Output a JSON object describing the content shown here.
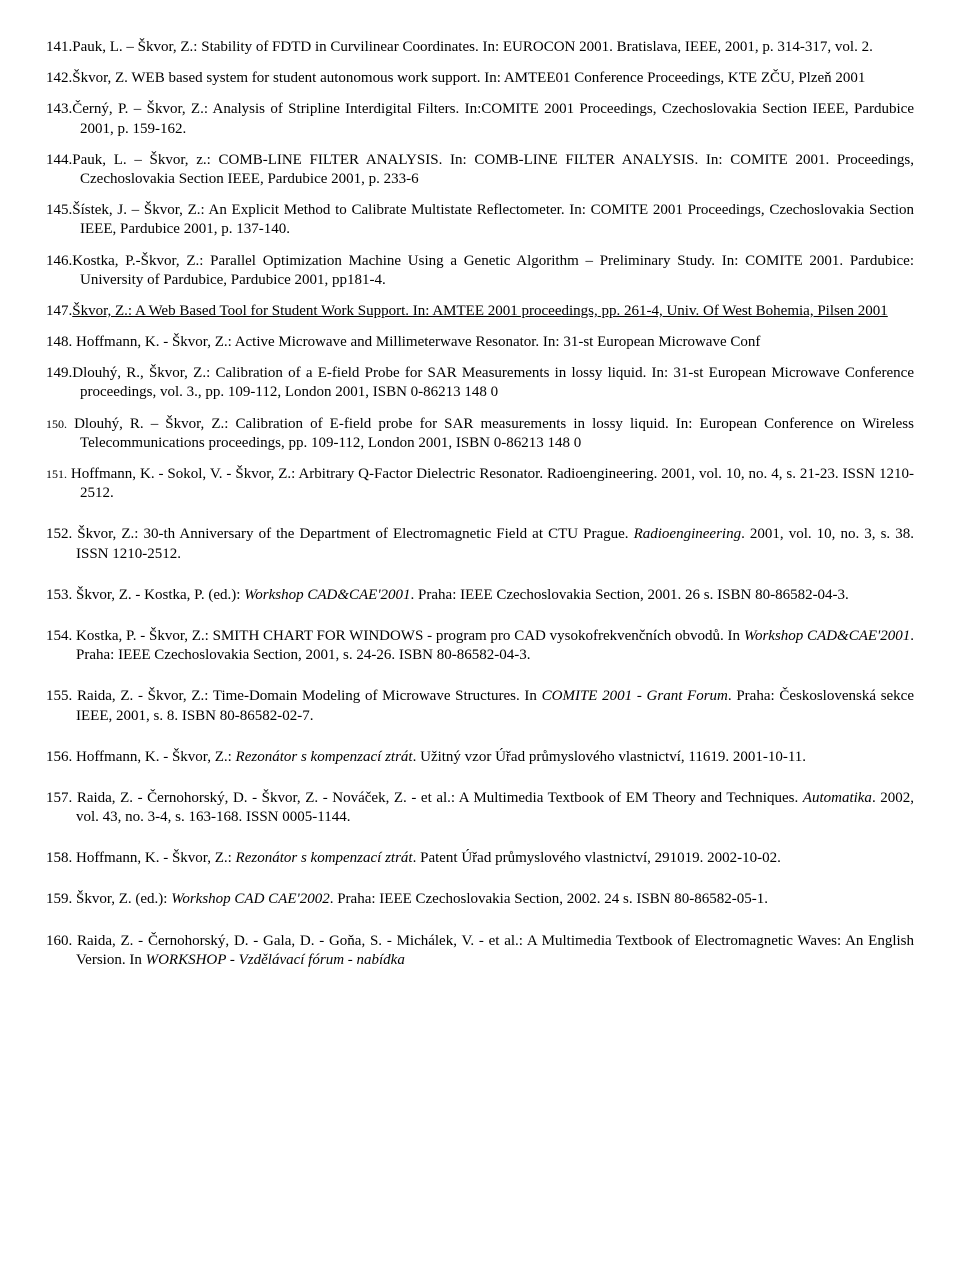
{
  "entries": [
    {
      "n": "141.",
      "cls": "hang",
      "html": "Pauk, L. – Škvor, Z.: Stability of FDTD in Curvilinear Coordinates. In: EUROCON 2001. Bratislava, IEEE, 2001, p. 314-317, vol. 2."
    },
    {
      "n": "142.",
      "cls": "hang",
      "html": "Škvor, Z. WEB based system for student autonomous work support. In: AMTEE01 Conference Proceedings, KTE ZČU, Plzeň 2001"
    },
    {
      "n": "143.",
      "cls": "hang",
      "html": "Černý, P. – Škvor, Z.: Analysis of Stripline Interdigital Filters. In:COMITE 2001 Proceedings, Czechoslovakia Section IEEE, Pardubice 2001, p. 159-162."
    },
    {
      "n": "144.",
      "cls": "hang",
      "html": "Pauk, L. – Škvor, z.: COMB-LINE FILTER ANALYSIS. In: COMB-LINE FILTER ANALYSIS. In: COMITE 2001. Proceedings, Czechoslovakia Section IEEE, Pardubice 2001, p.  233-6"
    },
    {
      "n": "145.",
      "cls": "hang",
      "html": "Šístek, J. – Škvor, Z.: An Explicit Method to Calibrate Multistate Reflectometer. In: COMITE 2001 Proceedings, Czechoslovakia Section IEEE, Pardubice 2001, p. 137-140."
    },
    {
      "n": "146.",
      "cls": "hang",
      "html": "Kostka, P.-Škvor, Z.: Parallel Optimization Machine Using a Genetic Algorithm – Preliminary Study. In: COMITE 2001. Pardubice: University of Pardubice, Pardubice 2001, pp181-4."
    },
    {
      "n": "147.",
      "cls": "hang",
      "html": "<span class=\"underline\">Škvor, Z.: A Web Based Tool for Student Work Support. In: AMTEE 2001 proceedings, pp. 261-4, Univ. Of West Bohemia, Pilsen 2001</span>"
    },
    {
      "n": "148.",
      "cls": "hang-sm",
      "html": " Hoffmann, K. - Škvor, Z.: Active Microwave and Millimeterwave Resonator. In: 31-st European Microwave Conf"
    },
    {
      "n": "149.",
      "cls": "hang",
      "html": "Dlouhý, R., Škvor, Z.: Calibration of a E-field Probe for SAR Measurements in lossy liquid. In: 31-st European Microwave Conference proceedings, vol. 3., pp. 109-112, London 2001, ISBN 0-86213 148 0"
    },
    {
      "n": "<span class=\"sm-num\">150.</span>",
      "cls": "hang",
      "html": " Dlouhý, R. – Škvor, Z.: Calibration of E-field probe for SAR measurements in lossy liquid. In: European Conference on Wireless Telecommunications proceedings, pp. 109-112, London 2001, ISBN 0-86213 148 0"
    },
    {
      "n": "<span class=\"sm-num\">151.</span>",
      "cls": "hang extra-gap",
      "html": " Hoffmann, K. - Sokol, V. - Škvor, Z.: Arbitrary Q-Factor Dielectric Resonator. Radioengineering. 2001, vol. 10, no. 4, s. 21-23. ISSN 1210-2512."
    },
    {
      "n": "152.",
      "cls": "hang-sm extra-gap",
      "html": " Škvor, Z.: 30-th Anniversary of the Department of Electromagnetic Field at CTU Prague. <span class=\"italic\">Radioengineering</span>. 2001, vol. 10, no. 3, s. 38. ISSN 1210-2512."
    },
    {
      "n": "153.",
      "cls": "hang-sm extra-gap",
      "html": " Škvor, Z. - Kostka, P. (ed.): <span class=\"italic\">Workshop CAD&CAE'2001</span>. Praha: IEEE Czechoslovakia Section, 2001. 26 s. ISBN 80-86582-04-3."
    },
    {
      "n": "154.",
      "cls": "hang-sm extra-gap",
      "html": " Kostka, P. - Škvor, Z.: SMITH CHART FOR WINDOWS - program pro CAD vysokofrekvenčních obvodů. In <span class=\"italic\">Workshop CAD&CAE'2001</span>. Praha: IEEE Czechoslovakia Section, 2001, s. 24-26. ISBN 80-86582-04-3."
    },
    {
      "n": "155.",
      "cls": "hang-sm extra-gap",
      "html": " Raida, Z. - Škvor, Z.: Time-Domain Modeling of Microwave Structures. In <span class=\"italic\">COMITE 2001 - Grant Forum</span>. Praha: Československá sekce IEEE, 2001, s. 8. ISBN 80-86582-02-7."
    },
    {
      "n": "156.",
      "cls": "hang-sm extra-gap",
      "html": " Hoffmann, K. - Škvor, Z.: <span class=\"italic\">Rezonátor s kompenzací ztrát</span>. Užitný vzor Úřad průmyslového vlastnictví, 11619. 2001-10-11."
    },
    {
      "n": "157.",
      "cls": "hang-sm extra-gap",
      "html": " Raida, Z. - Černohorský, D. - Škvor, Z. - Nováček, Z. - et al.: A Multimedia Textbook of EM Theory and Techniques. <span class=\"italic\">Automatika</span>. 2002, vol. 43, no. 3-4, s. 163-168. ISSN 0005-1144."
    },
    {
      "n": "158.",
      "cls": "hang-sm extra-gap",
      "html": " Hoffmann, K. - Škvor, Z.: <span class=\"italic\">Rezonátor s kompenzací ztrát</span>. Patent Úřad průmyslového vlastnictví, 291019. 2002-10-02."
    },
    {
      "n": "159.",
      "cls": "hang-sm extra-gap",
      "html": " Škvor, Z. (ed.): <span class=\"italic\">Workshop CAD CAE'2002</span>. Praha: IEEE Czechoslovakia Section, 2002. 24 s. ISBN 80-86582-05-1."
    },
    {
      "n": "160.",
      "cls": "hang-sm",
      "html": " Raida, Z. - Černohorský, D. - Gala, D. - Goňa, S. - Michálek, V. - et al.: A Multimedia Textbook of Electromagnetic Waves: An English Version. In <span class=\"italic\">WORKSHOP - Vzdělávací fórum - nabídka</span>"
    }
  ]
}
